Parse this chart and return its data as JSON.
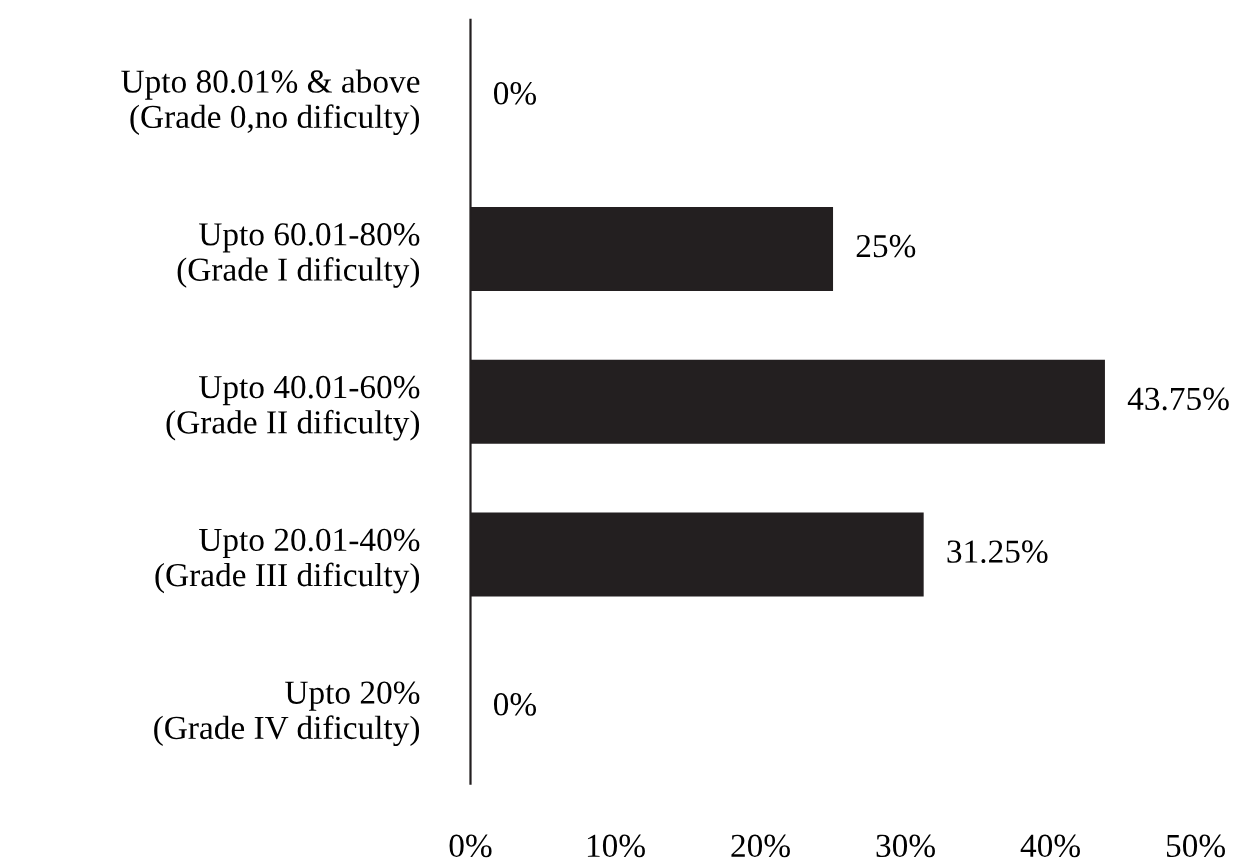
{
  "chart_data": {
    "type": "bar",
    "orientation": "horizontal",
    "categories": [
      "Upto 80.01% & above\n(Grade 0,no dificulty)",
      "Upto 60.01-80%\n(Grade I dificulty)",
      "Upto 40.01-60%\n(Grade II dificulty)",
      "Upto 20.01-40%\n(Grade III dificulty)",
      "Upto 20%\n(Grade IV dificulty)"
    ],
    "values": [
      0,
      25,
      43.75,
      31.25,
      0
    ],
    "value_labels": [
      "0%",
      "25%",
      "43.75%",
      "31.25%",
      "0%"
    ],
    "color": "#231f20",
    "xlim": [
      0,
      50
    ],
    "xticks": [
      {
        "value": 0,
        "label": "0%"
      },
      {
        "value": 10,
        "label": "10%"
      },
      {
        "value": 20,
        "label": "20%"
      },
      {
        "value": 30,
        "label": "30%"
      },
      {
        "value": 40,
        "label": "40%"
      },
      {
        "value": 50,
        "label": "50%"
      }
    ],
    "grid": false,
    "legend": false
  }
}
